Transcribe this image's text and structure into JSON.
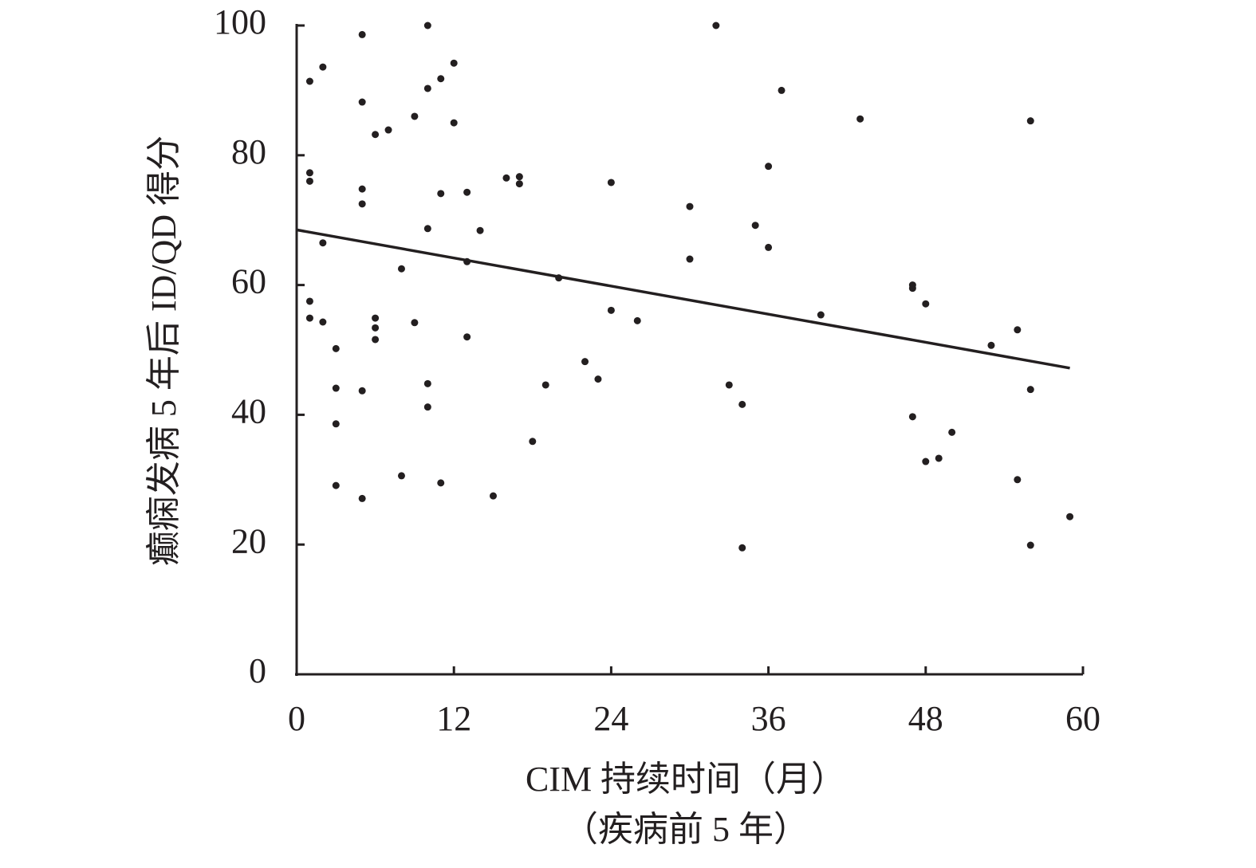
{
  "chart_data": {
    "type": "scatter",
    "x_label": "CIM 持续时间（月）",
    "x_label_2": "（疾病前 5 年）",
    "y_label": "癫痫发病 5 年后 ID/QD 得分",
    "xlim": [
      0,
      60
    ],
    "xticks": [
      0,
      12,
      24,
      36,
      48,
      60
    ],
    "ylim": [
      0,
      100
    ],
    "yticks": [
      0,
      20,
      40,
      60,
      80,
      100
    ],
    "color": "#231f20",
    "series": [
      {
        "name": "",
        "x": [
          1,
          1,
          1,
          1,
          1,
          2,
          2,
          2,
          3,
          3,
          3,
          3,
          5,
          5,
          5,
          5,
          5,
          5,
          6,
          6,
          6,
          6,
          7,
          8,
          8,
          9,
          9,
          10,
          10,
          10,
          10,
          10,
          11,
          11,
          11,
          12,
          12,
          13,
          13,
          13,
          14,
          15,
          16,
          17,
          17,
          18,
          19,
          20,
          22,
          23,
          24,
          24,
          26,
          30,
          30,
          32,
          33,
          34,
          34,
          35,
          36,
          36,
          37,
          40,
          43,
          47,
          47,
          47,
          48,
          48,
          49,
          50,
          53,
          55,
          55,
          56,
          56,
          56,
          59
        ],
        "values": [
          91.4,
          77.3,
          76.0,
          57.5,
          54.9,
          93.6,
          66.5,
          54.3,
          50.2,
          44.1,
          38.6,
          29.1,
          98.6,
          88.2,
          74.8,
          72.5,
          43.7,
          27.1,
          83.2,
          54.9,
          53.4,
          51.6,
          83.9,
          62.5,
          30.6,
          86.0,
          54.2,
          100,
          90.3,
          68.7,
          44.8,
          41.2,
          91.8,
          74.1,
          29.5,
          94.2,
          85.0,
          74.3,
          63.6,
          52.0,
          68.4,
          27.5,
          76.5,
          76.7,
          75.6,
          35.9,
          44.6,
          61.1,
          48.2,
          45.5,
          75.8,
          56.1,
          54.5,
          72.1,
          64.0,
          100,
          44.6,
          41.6,
          19.5,
          69.2,
          78.3,
          65.8,
          90.0,
          55.4,
          85.6,
          60.0,
          59.5,
          39.7,
          57.1,
          32.8,
          33.3,
          37.3,
          50.7,
          53.1,
          30.0,
          85.3,
          43.9,
          19.9,
          24.3
        ]
      }
    ],
    "trendline": {
      "x": [
        0,
        59
      ],
      "values": [
        68.5,
        47.2
      ]
    }
  }
}
